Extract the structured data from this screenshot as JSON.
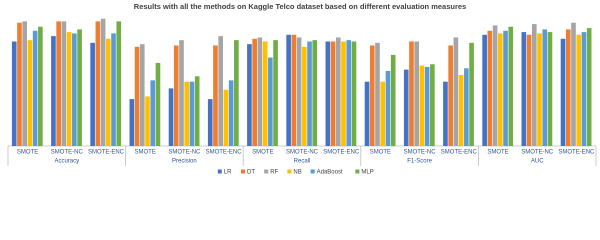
{
  "chart_data": {
    "type": "bar",
    "title": "Results with all the methods on Kaggle Telco dataset based on different evaluation measures",
    "groups": [
      "Accuracy",
      "Precision",
      "Recall",
      "F1-Score",
      "AUC"
    ],
    "categories": [
      "SMOTE",
      "SMOTE-NC",
      "SMOTE-ENC",
      "SMOTE",
      "SMOTE-NC",
      "SMOTE-ENC",
      "SMOTE",
      "SMOTE-NC",
      "SMOTE-ENC",
      "SMOTE",
      "SMOTE-NC",
      "SMOTE-ENC",
      "SMOTE",
      "SMOTE-NC",
      "SMOTE-ENC"
    ],
    "series": [
      {
        "name": "LR",
        "color": "#4472c4",
        "values": [
          78,
          82,
          77,
          35,
          43,
          35,
          76,
          83,
          78,
          48,
          57,
          48,
          83,
          85,
          80
        ]
      },
      {
        "name": "DT",
        "color": "#ed7d31",
        "values": [
          92,
          93,
          93,
          74,
          75,
          75,
          80,
          83,
          78,
          75,
          78,
          75,
          86,
          83,
          87
        ]
      },
      {
        "name": "RF",
        "color": "#a5a5a5",
        "values": [
          93,
          93,
          95,
          76,
          79,
          82,
          81,
          81,
          81,
          77,
          78,
          81,
          90,
          91,
          92
        ]
      },
      {
        "name": "NB",
        "color": "#ffc000",
        "values": [
          79,
          85,
          80,
          37,
          48,
          42,
          78,
          74,
          78,
          48,
          60,
          53,
          84,
          84,
          83
        ]
      },
      {
        "name": "AdaBoost",
        "color": "#5b9bd5",
        "values": [
          86,
          84,
          84,
          49,
          48,
          49,
          66,
          78,
          79,
          56,
          59,
          58,
          86,
          87,
          85
        ]
      },
      {
        "name": "MLP",
        "color": "#70ad47",
        "values": [
          89,
          87,
          93,
          62,
          52,
          79,
          79,
          79,
          78,
          68,
          61,
          77,
          89,
          85,
          88
        ]
      }
    ],
    "ylim": [
      0,
      100
    ]
  }
}
